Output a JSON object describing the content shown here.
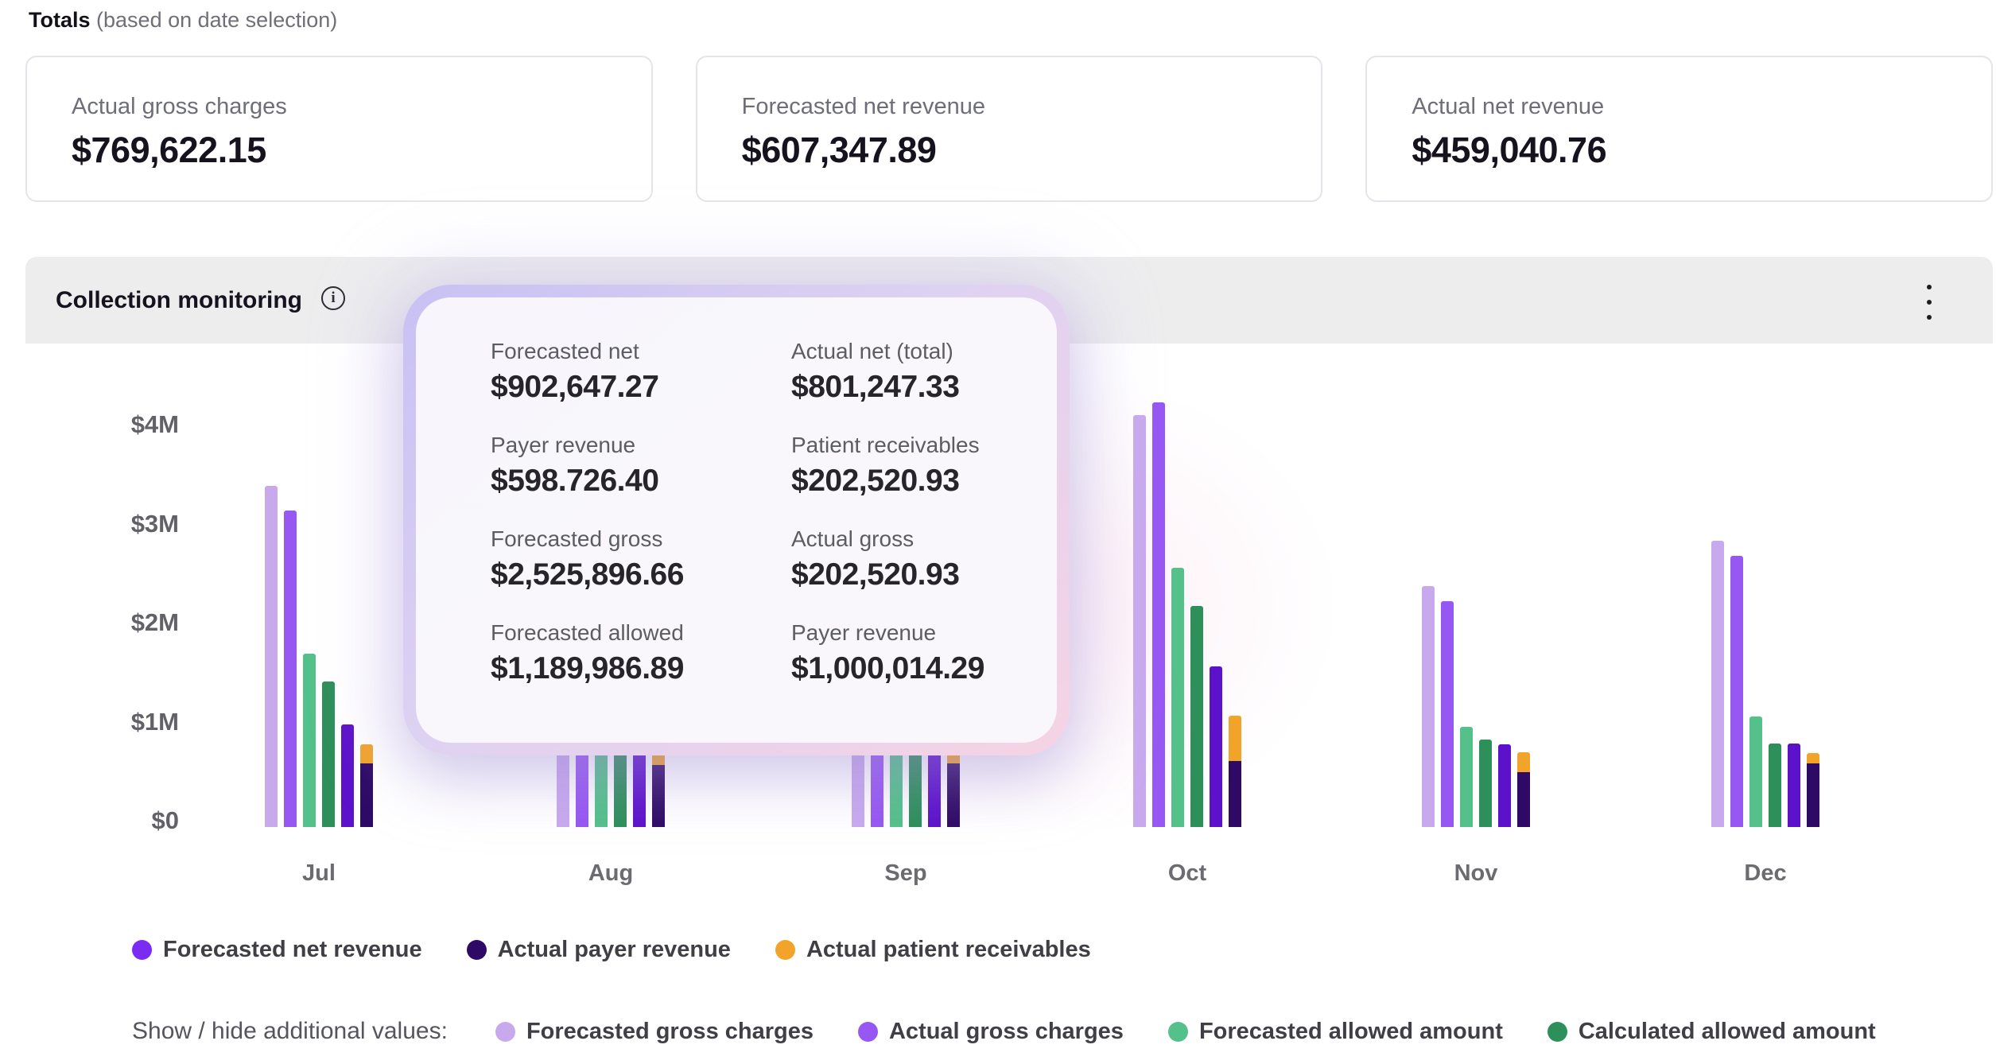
{
  "page": {
    "title_bold": "Totals",
    "title_note": "(based on date selection)"
  },
  "summary_cards": [
    {
      "label": "Actual gross charges",
      "value": "$769,622.15"
    },
    {
      "label": "Forecasted net revenue",
      "value": "$607,347.89"
    },
    {
      "label": "Actual net revenue",
      "value": "$459,040.76"
    }
  ],
  "panel": {
    "title": "Collection monitoring"
  },
  "tooltip": {
    "rows": [
      {
        "left_label": "Forecasted net",
        "left_value": "$902,647.27",
        "right_label": "Actual net (total)",
        "right_value": "$801,247.33"
      },
      {
        "left_label": "Payer revenue",
        "left_value": "$598.726.40",
        "right_label": "Patient receivables",
        "right_value": "$202,520.93"
      },
      {
        "left_label": "Forecasted gross",
        "left_value": "$2,525,896.66",
        "right_label": "Actual gross",
        "right_value": "$202,520.93"
      },
      {
        "left_label": "Forecasted allowed",
        "left_value": "$1,189,986.89",
        "right_label": "Payer revenue",
        "right_value": "$1,000,014.29"
      }
    ]
  },
  "chart_data": {
    "type": "bar",
    "title": "Collection monitoring",
    "categories": [
      "Jul",
      "Aug",
      "Sep",
      "Oct",
      "Nov",
      "Dec"
    ],
    "unit": "USD millions",
    "ylim": [
      0,
      4
    ],
    "yticks": [
      "$4M",
      "$3M",
      "$2M",
      "$1M",
      "$0"
    ],
    "grid": false,
    "legend_position": "bottom",
    "series": [
      {
        "name": "Forecasted gross charges",
        "color": "#c8a9ee",
        "values": [
          3.4,
          0.92,
          0.9,
          4.1,
          2.4,
          2.85
        ]
      },
      {
        "name": "Actual gross charges",
        "color": "#9657f2",
        "values": [
          3.15,
          0.95,
          0.95,
          4.23,
          2.25,
          2.7
        ]
      },
      {
        "name": "Forecasted allowed amount",
        "color": "#53c189",
        "values": [
          1.73,
          0.98,
          0.97,
          2.58,
          1.0,
          1.1
        ]
      },
      {
        "name": "Calculated allowed amount",
        "color": "#2d8f5a",
        "values": [
          1.45,
          0.95,
          0.95,
          2.2,
          0.87,
          0.83
        ]
      },
      {
        "name": "Forecasted net revenue",
        "color": "#5c11ca",
        "values": [
          1.02,
          1.03,
          0.97,
          1.6,
          0.82,
          0.83
        ]
      },
      {
        "name": "Actual payer revenue",
        "color": "#2e0a66",
        "values": [
          0.63,
          0.62,
          0.63,
          0.66,
          0.55,
          0.63
        ],
        "stack": "actual"
      },
      {
        "name": "Actual patient receivables",
        "color": "#f2a42a",
        "values": [
          0.19,
          0.28,
          0.3,
          0.45,
          0.2,
          0.1
        ],
        "stack": "actual"
      }
    ]
  },
  "legend": {
    "primary": [
      {
        "label": "Forecasted net revenue",
        "color": "#7b2cf2"
      },
      {
        "label": "Actual payer revenue",
        "color": "#2e0a66"
      },
      {
        "label": "Actual patient receivables",
        "color": "#f2a42a"
      }
    ],
    "additional_label": "Show / hide additional values:",
    "additional": [
      {
        "label": "Forecasted gross charges",
        "color": "#c8a9ee"
      },
      {
        "label": "Actual gross charges",
        "color": "#9657f2"
      },
      {
        "label": "Forecasted allowed amount",
        "color": "#53c189"
      },
      {
        "label": "Calculated allowed amount",
        "color": "#2d8f5a"
      }
    ]
  }
}
